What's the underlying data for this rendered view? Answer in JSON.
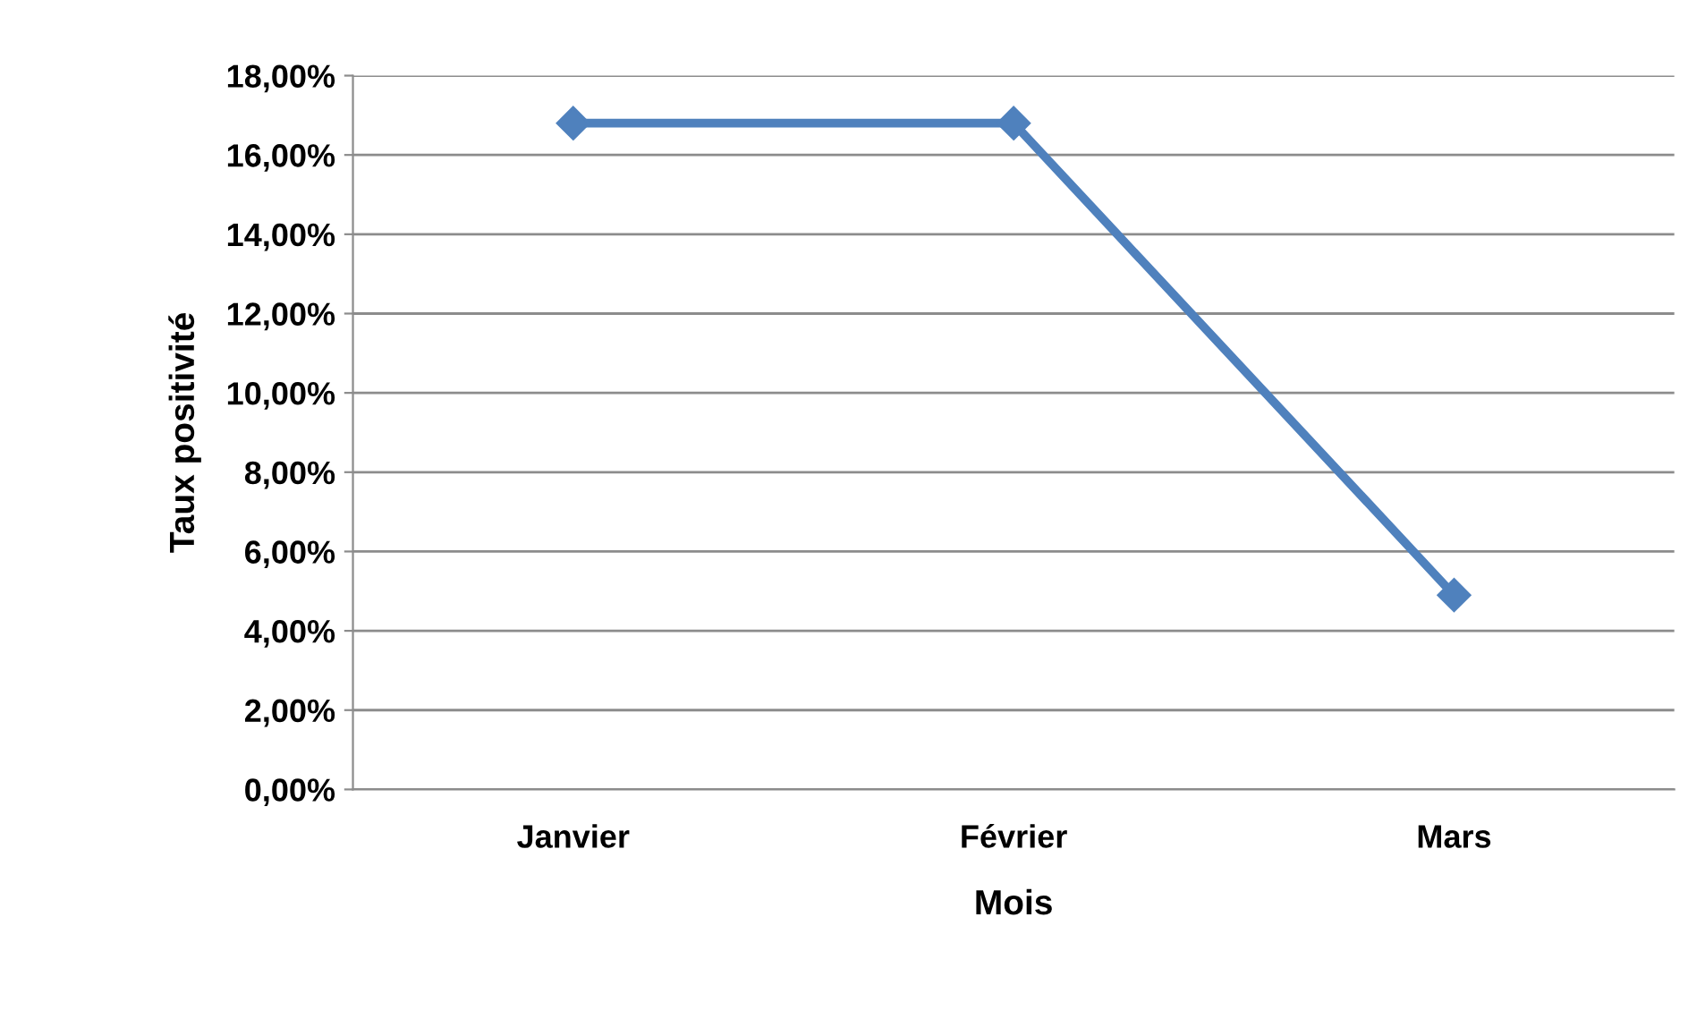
{
  "chart_data": {
    "type": "line",
    "xlabel": "Mois",
    "ylabel": "Taux positivité",
    "categories": [
      "Janvier",
      "Février",
      "Mars"
    ],
    "series": [
      {
        "color": "#4f81bd",
        "values": [
          16.8,
          16.8,
          4.9
        ]
      }
    ],
    "ylim": [
      0,
      18
    ],
    "yticks": [
      {
        "value": 0,
        "label": "0,00%"
      },
      {
        "value": 2,
        "label": "2,00%"
      },
      {
        "value": 4,
        "label": "4,00%"
      },
      {
        "value": 6,
        "label": "6,00%"
      },
      {
        "value": 8,
        "label": "8,00%"
      },
      {
        "value": 10,
        "label": "10,00%"
      },
      {
        "value": 12,
        "label": "12,00%"
      },
      {
        "value": 14,
        "label": "14,00%"
      },
      {
        "value": 16,
        "label": "16,00%"
      },
      {
        "value": 18,
        "label": "18,00%"
      }
    ],
    "grid": "y",
    "marker": "diamond",
    "line_style": "solid"
  }
}
